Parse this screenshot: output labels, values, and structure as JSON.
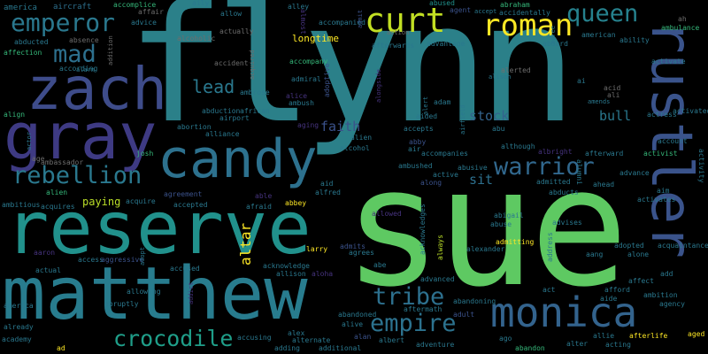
{
  "palette": {
    "background": "#000000",
    "purple": "#44207a",
    "indigo": "#3b4e8a",
    "blue": "#30688e",
    "teal": "#2a8f8c",
    "green": "#2fb47c",
    "lime": "#60ca60",
    "yellow": "#c8e020"
  },
  "words": {
    "flynn": "flynn",
    "sue": "sue",
    "reserve": "reserve",
    "matthew": "matthew",
    "gray": "gray",
    "zach": "zach",
    "candy": "candy",
    "rustler": "rustler",
    "monica": "monica",
    "curt": "curt",
    "roman": "roman",
    "emperor": "emperor",
    "queen": "queen",
    "mad": "mad",
    "rebellion": "rebellion",
    "warrior": "warrior",
    "crocodile": "crocodile",
    "empire": "empire",
    "tribe": "tribe",
    "lead": "lead",
    "faith": "faith",
    "stock": "stock",
    "bull": "bull",
    "sit": "sit",
    "paying": "paying",
    "longtime": "longtime",
    "altar": "altar",
    "america": "america",
    "aircraft": "aircraft",
    "accomplice": "accomplice",
    "affair": "affair",
    "aily": "aily",
    "allow": "allow",
    "alley": "alley",
    "almost": "almost",
    "accompanied": "accompanied",
    "admit": "admit",
    "abused": "abused",
    "agent": "agent",
    "abraham": "abraham",
    "accept": "accept",
    "accidentally": "accidentally",
    "advice": "advice",
    "actually": "actually",
    "alcoholic": "alcoholic",
    "american": "american",
    "ah": "ah",
    "ambulance": "ambulance",
    "abducted": "abducted",
    "absence": "absence",
    "affection": "affection",
    "addition": "addition",
    "acquired": "acquired",
    "accident": "accident",
    "accompany": "accompany",
    "admiral": "admiral",
    "adoptive": "adoptive",
    "alongside": "alongside",
    "alerted": "alerted",
    "alison": "alison",
    "advantage": "advantage",
    "aboard": "aboard",
    "agree": "agree",
    "ability": "ability",
    "afterwards": "afterwards",
    "action": "action",
    "according": "according",
    "alarm": "alarm",
    "activate": "activate",
    "ai": "ai",
    "acid": "acid",
    "ali": "ali",
    "amends": "amends",
    "activated": "activated",
    "actress": "actress",
    "abduction": "abduction",
    "african": "african",
    "ambrose": "ambrose",
    "alice": "alice",
    "ambush": "ambush",
    "adam": "adam",
    "aided": "aided",
    "alert": "alert",
    "airfield": "airfield",
    "abu": "abu",
    "abortion": "abortion",
    "alliance": "alliance",
    "airport": "airport",
    "aging": "aging",
    "accepts": "accepts",
    "alien": "alien",
    "although": "although",
    "albright": "albright",
    "account": "account",
    "align": "align",
    "actor": "actor",
    "age": "age",
    "ambassador": "ambassador",
    "josh": "josh",
    "abby": "abby",
    "air": "air",
    "alcohol": "alcohol",
    "accompanies": "accompanies",
    "afterward": "afterward",
    "activist": "activist",
    "activity": "activity",
    "alumni": "alumni",
    "advance": "advance",
    "aim": "aim",
    "activates": "activates",
    "ambushed": "ambushed",
    "abusive": "abusive",
    "active": "active",
    "along": "along",
    "abducts": "abducts",
    "ahead": "ahead",
    "alien2": "alien",
    "ambitious": "ambitious",
    "acquires": "acquires",
    "acquire": "acquire",
    "agreement": "agreement",
    "afraid": "afraid",
    "able": "able",
    "aid": "aid",
    "alfred": "alfred",
    "admitted": "admitted",
    "accepted": "accepted",
    "abbey": "abbey",
    "allowed": "allowed",
    "abigail": "abigail",
    "abuse": "abuse",
    "advises": "advises",
    "acknowledges": "acknowledges",
    "always": "always",
    "admits": "admits",
    "admitting": "admitting",
    "alexander": "alexander",
    "address": "address",
    "acquaintance": "acquaintance",
    "adopted": "adopted",
    "aang": "aang",
    "alone": "alone",
    "aaron": "aaron",
    "access": "access",
    "aggressive": "aggressive",
    "adopt": "adopt",
    "accused": "accused",
    "larry": "larry",
    "agrees": "agrees",
    "abe": "abe",
    "actual": "actual",
    "acknowledge": "acknowledge",
    "allison": "allison",
    "aloha": "aloha",
    "advanced": "advanced",
    "affect": "affect",
    "add": "add",
    "allowing": "allowing",
    "addict": "addict",
    "abandoned": "abandoned",
    "aftermath": "aftermath",
    "abandoning": "abandoning",
    "act": "act",
    "afford": "afford",
    "aide": "aide",
    "ambition": "ambition",
    "agency": "agency",
    "america2": "america",
    "abruptly": "abruptly",
    "already": "already",
    "academy": "academy",
    "alive": "alive",
    "adult": "adult",
    "accusing": "accusing",
    "alex": "alex",
    "alternate": "alternate",
    "alan": "alan",
    "albert": "albert",
    "adventure": "adventure",
    "ago": "ago",
    "abandon": "abandon",
    "alter": "alter",
    "allie": "allie",
    "acting": "acting",
    "afterlife": "afterlife",
    "aged": "aged",
    "ad": "ad",
    "adding": "adding",
    "additional": "additional"
  }
}
